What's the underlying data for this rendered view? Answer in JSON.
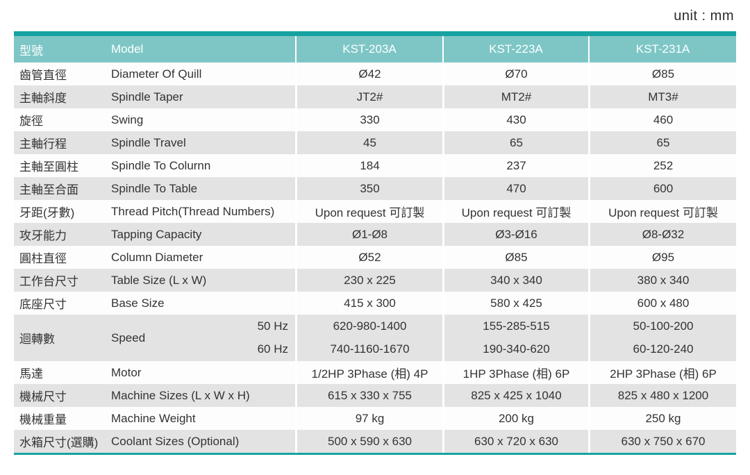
{
  "unit_label": "unit : mm",
  "colors": {
    "accent_dark_teal": "#17a2a2",
    "header_teal": "#7ec6c6",
    "row_gray": "#e3e3e3",
    "text": "#333333"
  },
  "header": {
    "col_zh": "型號",
    "col_en": "Model",
    "models": [
      "KST-203A",
      "KST-223A",
      "KST-231A"
    ]
  },
  "rows": [
    {
      "zh": "齒管直徑",
      "en": "Diameter Of Quill",
      "values": [
        "Ø42",
        "Ø70",
        "Ø85"
      ]
    },
    {
      "zh": "主軸斜度",
      "en": "Spindle Taper",
      "values": [
        "JT2#",
        "MT2#",
        "MT3#"
      ]
    },
    {
      "zh": "旋徑",
      "en": "Swing",
      "values": [
        "330",
        "430",
        "460"
      ]
    },
    {
      "zh": "主軸行程",
      "en": "Spindle Travel",
      "values": [
        "45",
        "65",
        "65"
      ]
    },
    {
      "zh": "主軸至圓柱",
      "en": "Spindle To Colurnn",
      "values": [
        "184",
        "237",
        "252"
      ]
    },
    {
      "zh": "主軸至合面",
      "en": "Spindle To Table",
      "values": [
        "350",
        "470",
        "600"
      ]
    },
    {
      "zh": "牙距(牙數)",
      "en": "Thread Pitch(Thread Numbers)",
      "values": [
        "Upon request 可訂製",
        "Upon request 可訂製",
        "Upon request 可訂製"
      ]
    },
    {
      "zh": "攻牙能力",
      "en": "Tapping Capacity",
      "values": [
        "Ø1-Ø8",
        "Ø3-Ø16",
        "Ø8-Ø32"
      ]
    },
    {
      "zh": "圓柱直徑",
      "en": "Column Diameter",
      "values": [
        "Ø52",
        "Ø85",
        "Ø95"
      ]
    },
    {
      "zh": "工作台尺寸",
      "en": "Table Size (L x W)",
      "values": [
        "230 x 225",
        "340 x 340",
        "380 x 340"
      ]
    },
    {
      "zh": "底座尺寸",
      "en": "Base Size",
      "values": [
        "415 x 300",
        "580 x 425",
        "600 x 480"
      ]
    },
    {
      "zh": "迴轉數",
      "en": "Speed",
      "freq_labels": [
        "50 Hz",
        "60 Hz"
      ],
      "values_50hz": [
        "620-980-1400",
        "155-285-515",
        "50-100-200"
      ],
      "values_60hz": [
        "740-1160-1670",
        "190-340-620",
        "60-120-240"
      ]
    },
    {
      "zh": "馬達",
      "en": "Motor",
      "values": [
        "1/2HP 3Phase (相) 4P",
        "1HP 3Phase (相) 6P",
        "2HP 3Phase (相) 6P"
      ]
    },
    {
      "zh": "機械尺寸",
      "en": "Machine Sizes (L x W x H)",
      "values": [
        "615 x 330 x 755",
        "825 x 425 x 1040",
        "825 x 480 x 1200"
      ]
    },
    {
      "zh": "機械重量",
      "en": "Machine Weight",
      "values": [
        "97 kg",
        "200 kg",
        "250 kg"
      ]
    },
    {
      "zh": "水箱尺寸(選購)",
      "en": "Coolant Sizes (Optional)",
      "values": [
        "500 x 590 x 630",
        "630 x 720 x 630",
        "630 x 750 x 670"
      ]
    }
  ]
}
